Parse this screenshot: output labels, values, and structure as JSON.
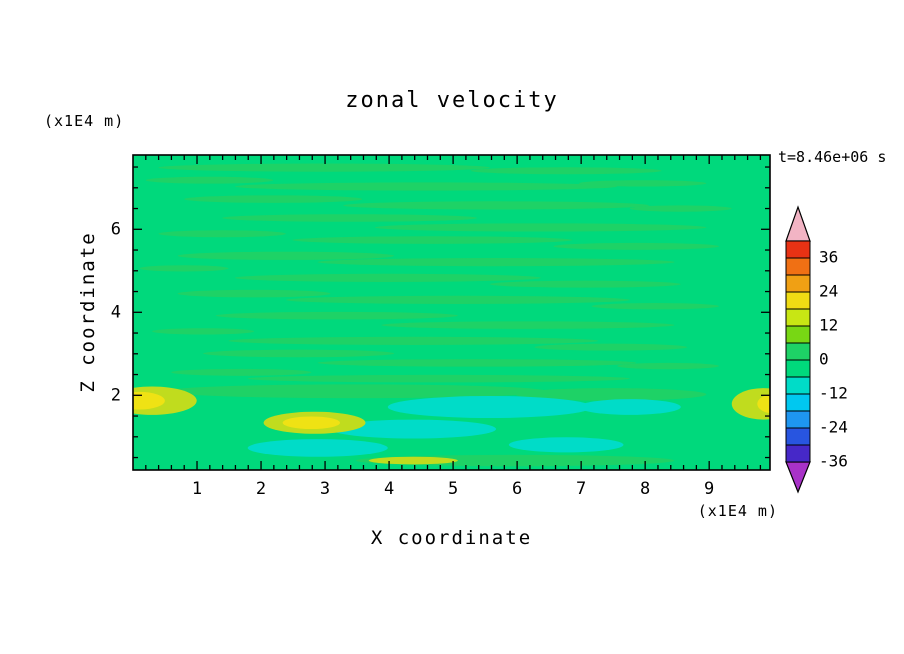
{
  "chart": {
    "title": "zonal velocity",
    "timestamp": "t=8.46e+06 s",
    "xlabel": "X coordinate",
    "ylabel": "Z coordinate",
    "x_unit_label": "(x1E4 m)",
    "y_unit_label": "(x1E4 m)"
  },
  "chart_data": {
    "type": "heatmap",
    "title": "zonal velocity",
    "subtitle": "t=8.46e+06 s",
    "xlabel": "X coordinate (x1E4 m)",
    "ylabel": "Z coordinate (x1E4 m)",
    "x_axis": {
      "min": 0,
      "max": 9.95,
      "major_ticks": [
        1,
        2,
        3,
        4,
        5,
        6,
        7,
        8,
        9
      ],
      "minor_step": 0.2
    },
    "y_axis": {
      "min": 0.2,
      "max": 7.79,
      "major_ticks": [
        2,
        4,
        6
      ],
      "minor_step": 0.5
    },
    "colorbar": {
      "labels": [
        "36",
        "24",
        "12",
        "0",
        "-12",
        "-24",
        "-36"
      ],
      "contour_interval": 6,
      "range": [
        -36,
        42
      ],
      "segments_top_to_bottom": [
        "#E83214",
        "#F07014",
        "#F0A014",
        "#F0DC14",
        "#C8E614",
        "#78D714",
        "#1ED266",
        "#00D97C",
        "#00DCC8",
        "#00C8F0",
        "#1E96F0",
        "#2855E0",
        "#4628C8"
      ],
      "arrow_top_color": "#F2B4C4",
      "arrow_bottom_color": "#A832C8"
    },
    "field": {
      "description": "zonal velocity field, mostly near 0 (green) with weak streaky banding; cyan (-6..-12) patches and yellow (+12..+18) maxima near the bottom boundary",
      "background_color": "#00D97C",
      "classes": {
        "g2": "#1ED266",
        "cyan": "#00DCC8",
        "ygreen": "#C0DC1E",
        "yellow": "#EFE214"
      },
      "blobs": [
        [
          "g2",
          0.3,
          0.04,
          0.26,
          0.013
        ],
        [
          "g2",
          0.68,
          0.05,
          0.15,
          0.011
        ],
        [
          "g2",
          0.12,
          0.08,
          0.1,
          0.011
        ],
        [
          "g2",
          0.46,
          0.1,
          0.3,
          0.013
        ],
        [
          "g2",
          0.8,
          0.09,
          0.1,
          0.01
        ],
        [
          "g2",
          0.22,
          0.14,
          0.14,
          0.012
        ],
        [
          "g2",
          0.57,
          0.16,
          0.24,
          0.013
        ],
        [
          "g2",
          0.86,
          0.17,
          0.08,
          0.01
        ],
        [
          "g2",
          0.34,
          0.2,
          0.2,
          0.012
        ],
        [
          "g2",
          0.64,
          0.23,
          0.26,
          0.013
        ],
        [
          "g2",
          0.14,
          0.25,
          0.1,
          0.011
        ],
        [
          "g2",
          0.47,
          0.27,
          0.22,
          0.012
        ],
        [
          "g2",
          0.79,
          0.29,
          0.13,
          0.011
        ],
        [
          "g2",
          0.24,
          0.32,
          0.17,
          0.013
        ],
        [
          "g2",
          0.57,
          0.34,
          0.28,
          0.013
        ],
        [
          "g2",
          0.08,
          0.36,
          0.07,
          0.01
        ],
        [
          "g2",
          0.4,
          0.39,
          0.24,
          0.013
        ],
        [
          "g2",
          0.71,
          0.41,
          0.15,
          0.011
        ],
        [
          "g2",
          0.19,
          0.44,
          0.12,
          0.012
        ],
        [
          "g2",
          0.51,
          0.46,
          0.27,
          0.013
        ],
        [
          "g2",
          0.82,
          0.48,
          0.1,
          0.01
        ],
        [
          "g2",
          0.32,
          0.51,
          0.19,
          0.012
        ],
        [
          "g2",
          0.62,
          0.54,
          0.23,
          0.012
        ],
        [
          "g2",
          0.11,
          0.56,
          0.08,
          0.01
        ],
        [
          "g2",
          0.44,
          0.59,
          0.29,
          0.013
        ],
        [
          "g2",
          0.75,
          0.61,
          0.12,
          0.011
        ],
        [
          "g2",
          0.26,
          0.63,
          0.15,
          0.012
        ],
        [
          "g2",
          0.54,
          0.66,
          0.25,
          0.012
        ],
        [
          "g2",
          0.84,
          0.67,
          0.08,
          0.01
        ],
        [
          "g2",
          0.17,
          0.69,
          0.11,
          0.011
        ],
        [
          "g2",
          0.48,
          0.71,
          0.3,
          0.012
        ],
        [
          "g2",
          0.35,
          0.75,
          0.3,
          0.022
        ],
        [
          "g2",
          0.75,
          0.76,
          0.15,
          0.02
        ],
        [
          "cyan",
          0.56,
          0.8,
          0.16,
          0.035
        ],
        [
          "cyan",
          0.78,
          0.8,
          0.08,
          0.025
        ],
        [
          "cyan",
          0.44,
          0.87,
          0.13,
          0.03
        ],
        [
          "cyan",
          0.29,
          0.93,
          0.11,
          0.028
        ],
        [
          "cyan",
          0.68,
          0.92,
          0.09,
          0.024
        ],
        [
          "g2",
          0.6,
          0.97,
          0.25,
          0.018
        ],
        [
          "ygreen",
          0.03,
          0.78,
          0.07,
          0.045
        ],
        [
          "yellow",
          0.01,
          0.78,
          0.04,
          0.028
        ],
        [
          "ygreen",
          0.285,
          0.85,
          0.08,
          0.035
        ],
        [
          "yellow",
          0.28,
          0.85,
          0.045,
          0.02
        ],
        [
          "ygreen",
          0.99,
          0.79,
          0.05,
          0.05
        ],
        [
          "yellow",
          1.005,
          0.79,
          0.025,
          0.03
        ],
        [
          "ygreen",
          0.44,
          0.97,
          0.07,
          0.012
        ]
      ]
    }
  }
}
